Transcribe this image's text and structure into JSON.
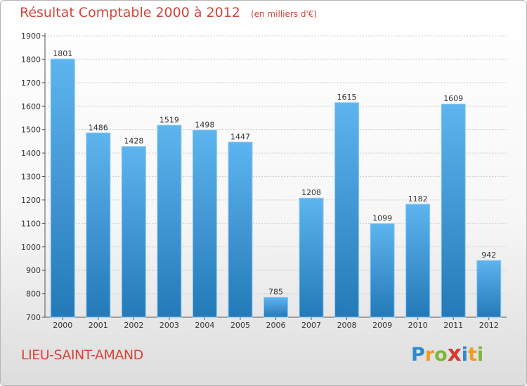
{
  "header": {
    "title": "Résultat Comptable 2000 à 2012",
    "unit": "(en milliers d'€)"
  },
  "footer": {
    "commune": "LIEU-SAINT-AMAND",
    "logo": "Proxiti"
  },
  "colors": {
    "accent": "#d4453a",
    "bar_top": "#5eb4ee",
    "bar_bottom": "#2479b8",
    "grid": "#cfcfcf"
  },
  "chart_data": {
    "type": "bar",
    "categories": [
      "2000",
      "2001",
      "2002",
      "2003",
      "2004",
      "2005",
      "2006",
      "2007",
      "2008",
      "2009",
      "2010",
      "2011",
      "2012"
    ],
    "values": [
      1801,
      1486,
      1428,
      1519,
      1498,
      1447,
      785,
      1208,
      1615,
      1099,
      1182,
      1609,
      942
    ],
    "title": "Résultat Comptable 2000 à 2012",
    "subtitle": "(en milliers d'€)",
    "xlabel": "",
    "ylabel": "",
    "ylim": [
      700,
      1900
    ],
    "yticks": [
      700,
      800,
      900,
      1000,
      1100,
      1200,
      1300,
      1400,
      1500,
      1600,
      1700,
      1800,
      1900
    ],
    "grid": true,
    "data_labels": true
  }
}
